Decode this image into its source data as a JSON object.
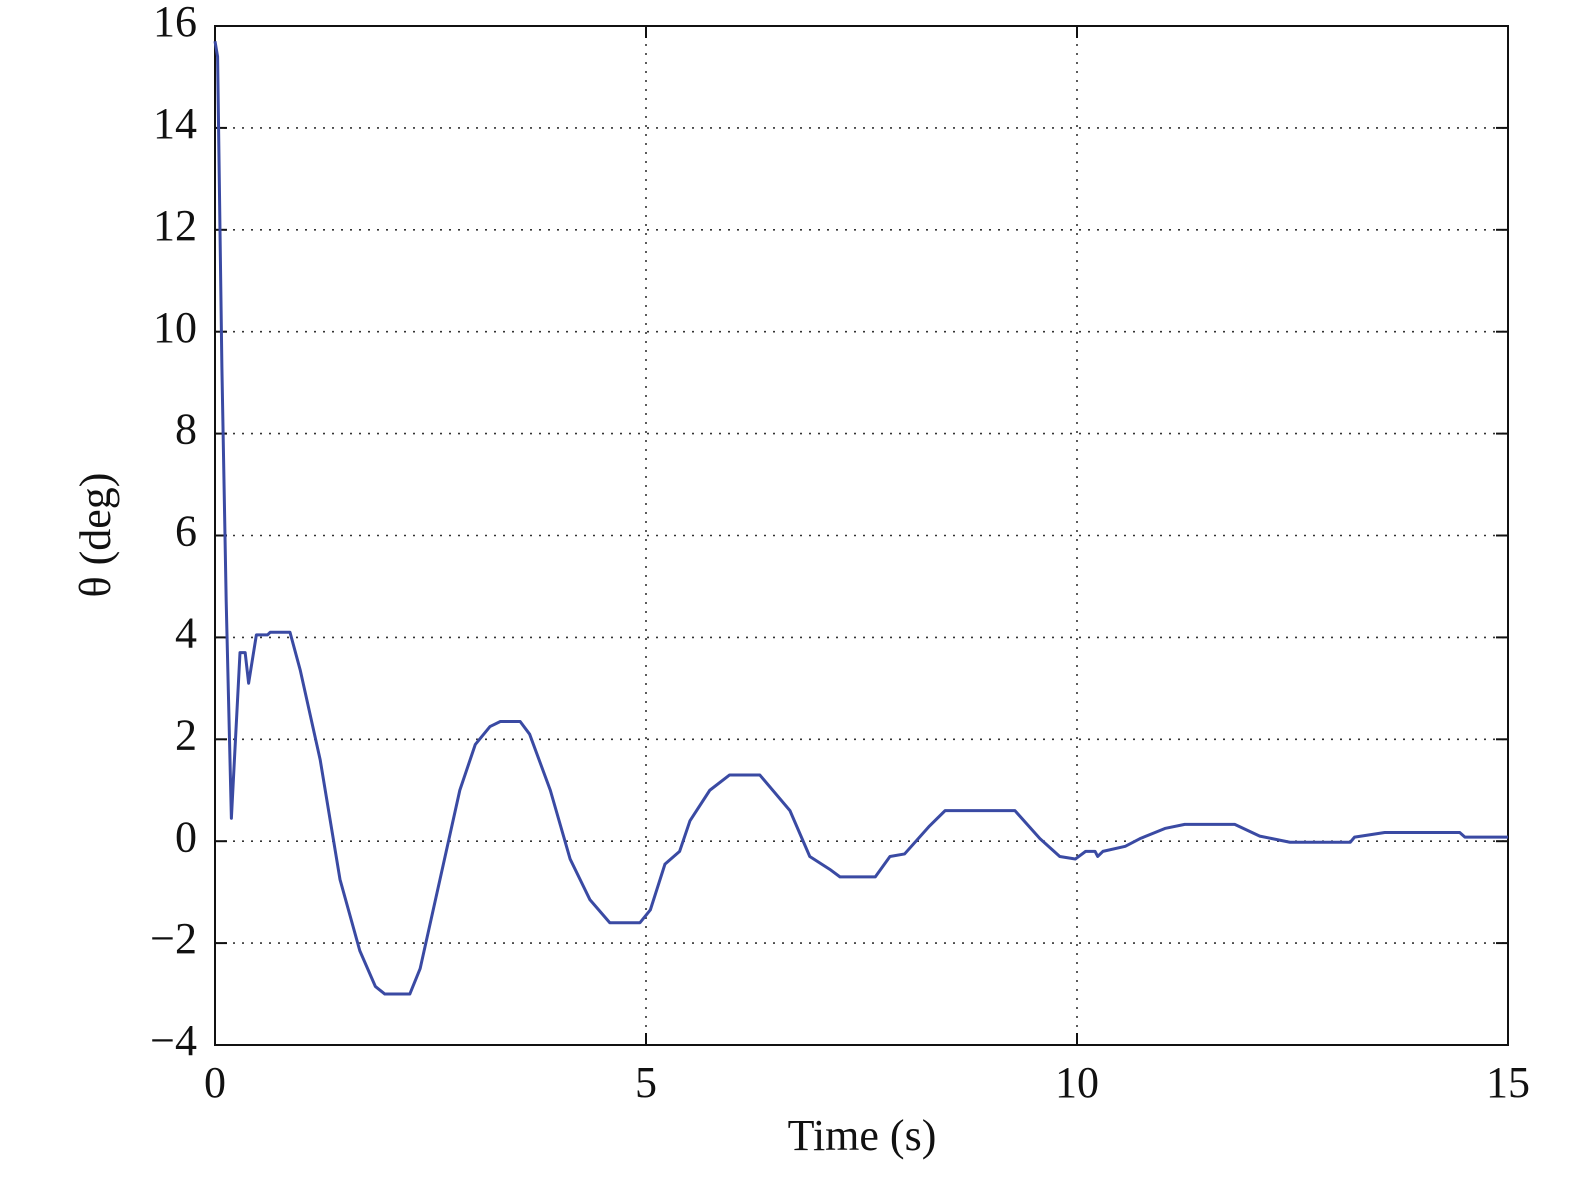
{
  "chart_data": {
    "type": "line",
    "xlabel": "Time (s)",
    "ylabel": "θ (deg)",
    "x": [
      0,
      0.03,
      0.08,
      0.13,
      0.19,
      0.29,
      0.35,
      0.39,
      0.48,
      0.61,
      0.64,
      0.87,
      0.99,
      1.22,
      1.45,
      1.68,
      1.86,
      1.97,
      2.26,
      2.38,
      2.61,
      2.84,
      3.02,
      3.19,
      3.31,
      3.54,
      3.65,
      3.89,
      4.12,
      4.35,
      4.58,
      4.93,
      5.05,
      5.22,
      5.39,
      5.51,
      5.74,
      5.97,
      6.32,
      6.67,
      6.9,
      7.13,
      7.25,
      7.66,
      7.83,
      8.0,
      8.29,
      8.47,
      9.28,
      9.57,
      9.8,
      9.98,
      10.1,
      10.21,
      10.24,
      10.3,
      10.56,
      10.73,
      11.02,
      11.25,
      11.83,
      12.12,
      12.47,
      13.17,
      13.22,
      13.57,
      14.44,
      14.5,
      15
    ],
    "series": [
      {
        "color": "#3a4aa3",
        "values": [
          15.7,
          15.4,
          9.3,
          4.7,
          0.45,
          3.7,
          3.7,
          3.1,
          4.05,
          4.05,
          4.1,
          4.1,
          3.35,
          1.6,
          -0.75,
          -2.15,
          -2.85,
          -3.0,
          -3.0,
          -2.5,
          -0.75,
          1.0,
          1.9,
          2.25,
          2.35,
          2.35,
          2.1,
          1.0,
          -0.35,
          -1.15,
          -1.6,
          -1.6,
          -1.35,
          -0.45,
          -0.2,
          0.4,
          1.0,
          1.3,
          1.3,
          0.6,
          -0.3,
          -0.55,
          -0.7,
          -0.7,
          -0.3,
          -0.25,
          0.3,
          0.6,
          0.6,
          0.05,
          -0.3,
          -0.35,
          -0.2,
          -0.2,
          -0.3,
          -0.2,
          -0.1,
          0.05,
          0.25,
          0.33,
          0.33,
          0.1,
          -0.02,
          -0.02,
          0.08,
          0.17,
          0.17,
          0.08,
          0.08
        ]
      }
    ],
    "xlim": [
      0,
      15
    ],
    "xticks": [
      0,
      5,
      10,
      15
    ],
    "ylim": [
      -4,
      16
    ],
    "yticks": [
      {
        "value": -4,
        "label": "−4"
      },
      {
        "value": -2,
        "label": "−2"
      },
      0,
      2,
      4,
      6,
      8,
      10,
      12,
      14,
      16
    ],
    "grid": true
  }
}
